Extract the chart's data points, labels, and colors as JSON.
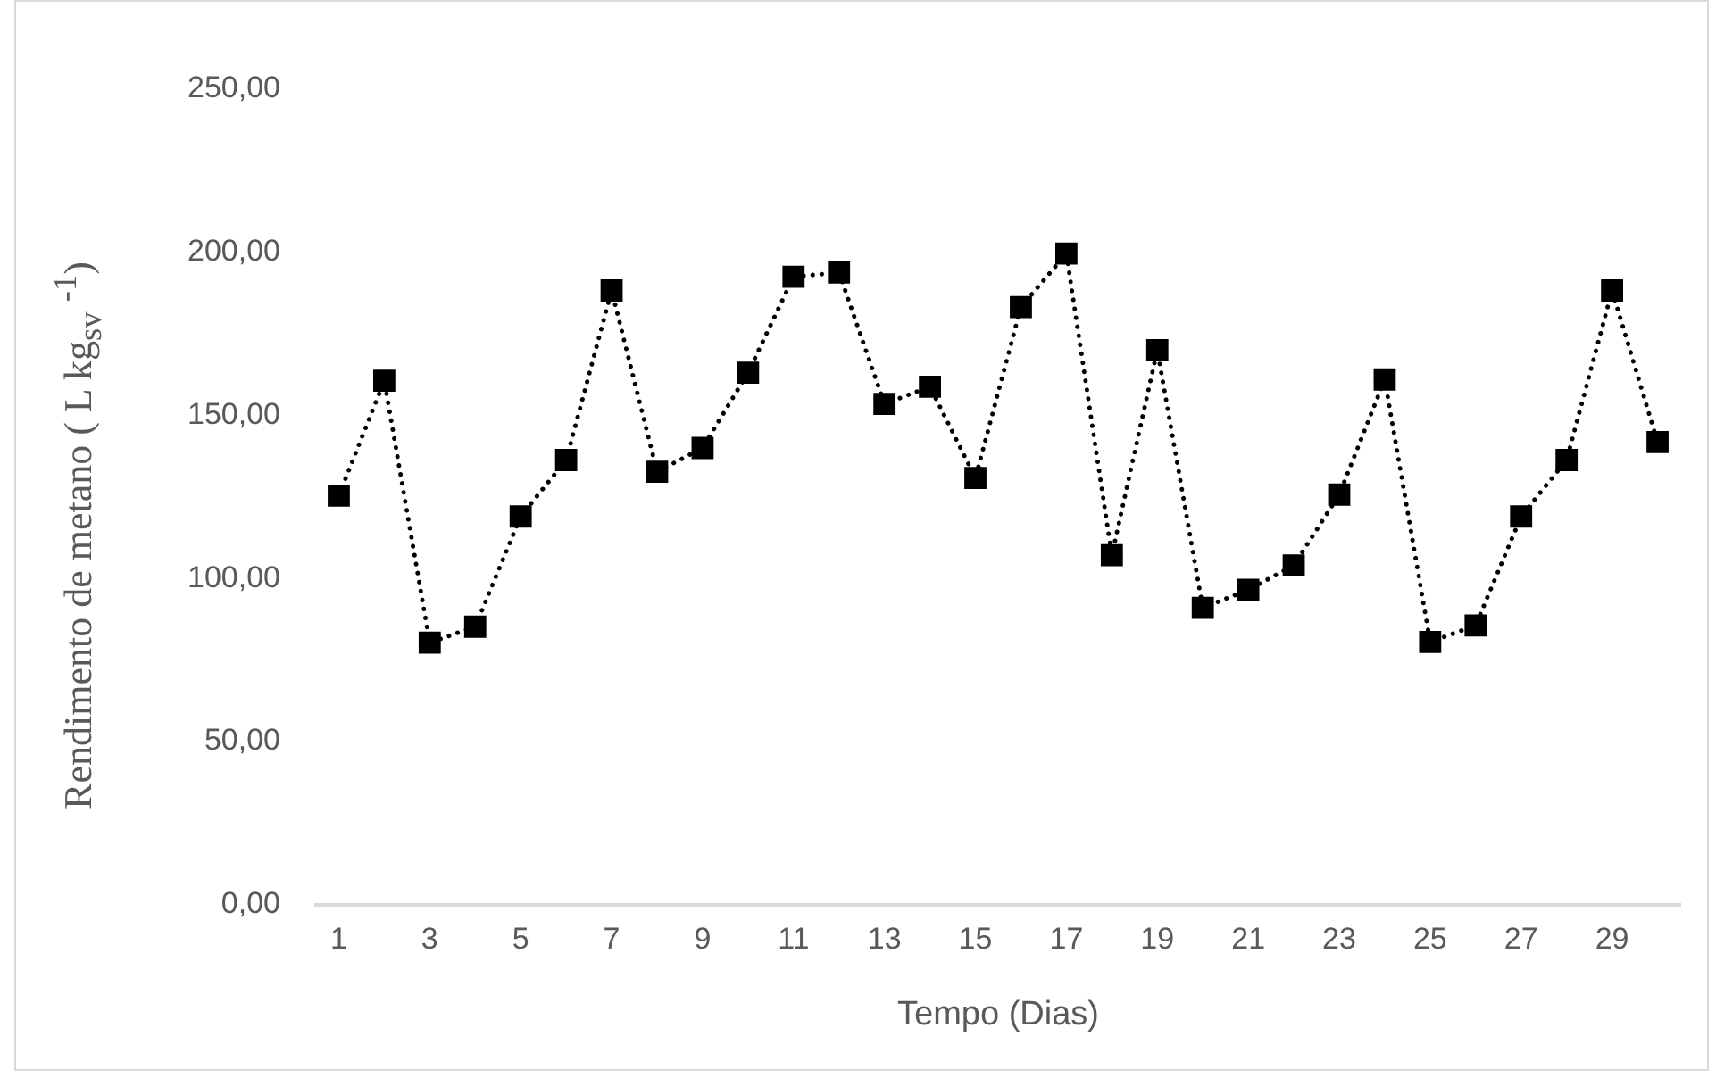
{
  "chart_data": {
    "type": "line",
    "xlabel": "Tempo (Dias)",
    "ylabel": "Rendimento de metano ( L kg$_{sv}$ $^{-1}$)",
    "x": [
      1,
      2,
      3,
      4,
      5,
      6,
      7,
      8,
      9,
      10,
      11,
      12,
      13,
      14,
      15,
      16,
      17,
      18,
      19,
      20,
      21,
      22,
      23,
      24,
      25,
      26,
      27,
      28,
      29,
      30
    ],
    "series": [
      {
        "color": "#000000",
        "values": [
          125.4,
          160.6,
          80.3,
          85.2,
          119,
          136.3,
          188.3,
          132.7,
          140,
          163.1,
          192.5,
          193.8,
          153.5,
          158.8,
          130.8,
          183.2,
          199.6,
          107.1,
          170,
          91,
          96.5,
          104,
          125.7,
          161,
          80.5,
          85.6,
          119,
          136.3,
          188.3,
          141.8
        ]
      }
    ],
    "xlim": [
      0.5,
      30.5
    ],
    "xticks": [
      1,
      3,
      5,
      7,
      9,
      11,
      13,
      15,
      17,
      19,
      21,
      23,
      25,
      27,
      29
    ],
    "ylim": [
      0,
      250
    ],
    "yticks": [
      {
        "value": 0,
        "label": "0,00"
      },
      {
        "value": 50,
        "label": "50,00"
      },
      {
        "value": 100,
        "label": "100,00"
      },
      {
        "value": 150,
        "label": "150,00"
      },
      {
        "value": 200,
        "label": "200,00"
      },
      {
        "value": 250,
        "label": "250,00"
      }
    ],
    "grid": false,
    "legend": false,
    "marker": "square",
    "line_style": "dotted"
  }
}
